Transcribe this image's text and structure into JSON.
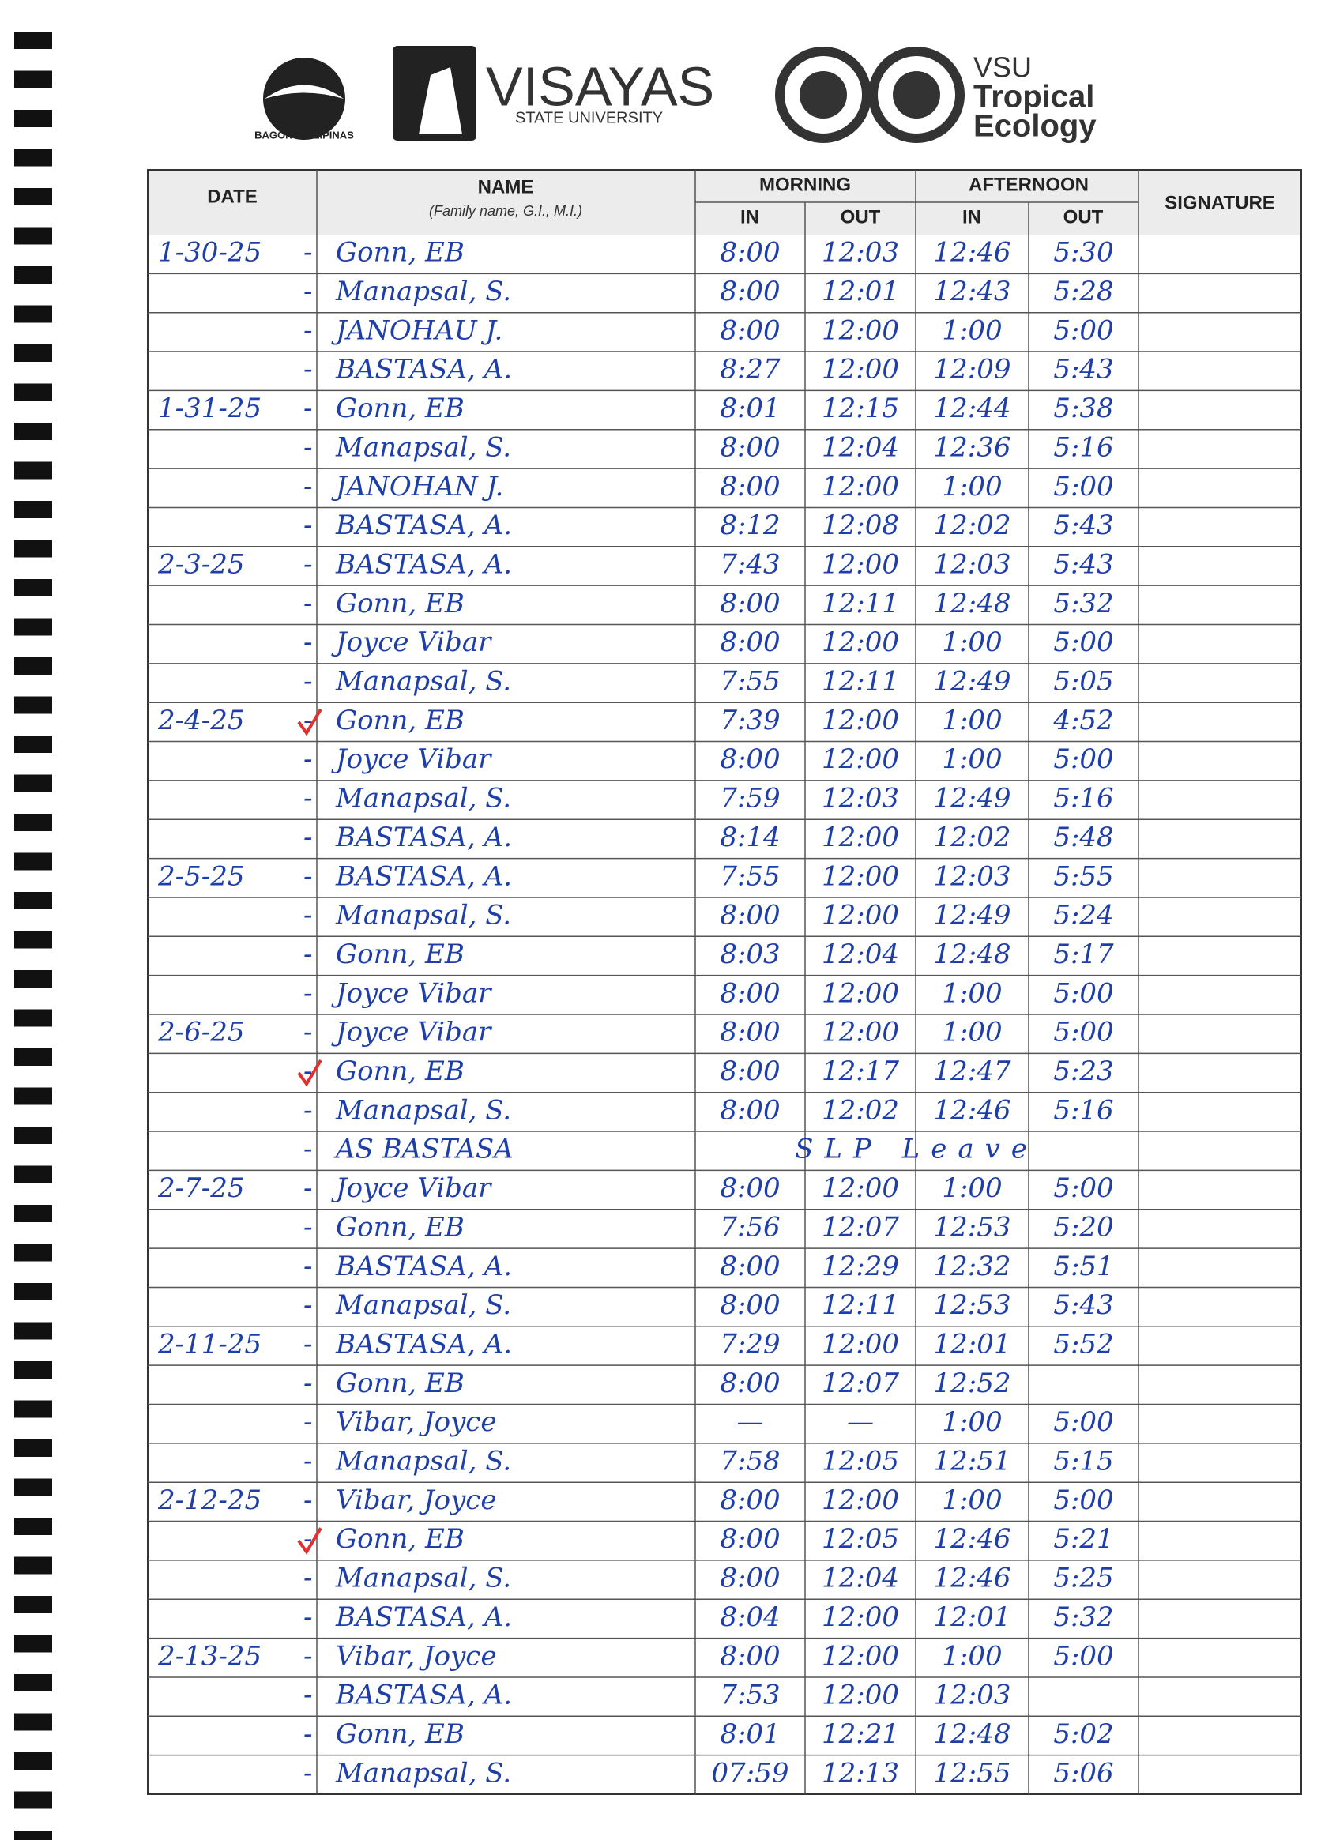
{
  "header": {
    "logo_left": "BAGONG PILIPINAS",
    "university": "VISAYAS",
    "university_sub": "STATE UNIVERSITY",
    "unit_abbr": "VSU",
    "unit_line1": "Tropical",
    "unit_line2": "Ecology"
  },
  "table": {
    "columns": {
      "date": "DATE",
      "name": "NAME",
      "name_hint": "(Family name, G.I., M.I.)",
      "morning": "MORNING",
      "afternoon": "AFTERNOON",
      "in": "IN",
      "out": "OUT",
      "signature": "SIGNATURE"
    },
    "rows": [
      {
        "date": "1-30-25",
        "name": "Gonn, EB",
        "times": [
          "8:00",
          "12:03",
          "12:46",
          "5:30"
        ]
      },
      {
        "name": "Manapsal, S.",
        "times": [
          "8:00",
          "12:01",
          "12:43",
          "5:28"
        ]
      },
      {
        "name": "JANOHAU J.",
        "times": [
          "8:00",
          "12:00",
          "1:00",
          "5:00"
        ]
      },
      {
        "name": "BASTASA, A.",
        "times": [
          "8:27",
          "12:00",
          "12:09",
          "5:43"
        ]
      },
      {
        "date": "1-31-25",
        "name": "Gonn, EB",
        "times": [
          "8:01",
          "12:15",
          "12:44",
          "5:38"
        ]
      },
      {
        "name": "Manapsal, S.",
        "times": [
          "8:00",
          "12:04",
          "12:36",
          "5:16"
        ]
      },
      {
        "name": "JANOHAN J.",
        "times": [
          "8:00",
          "12:00",
          "1:00",
          "5:00"
        ]
      },
      {
        "name": "BASTASA, A.",
        "times": [
          "8:12",
          "12:08",
          "12:02",
          "5:43"
        ]
      },
      {
        "date": "2-3-25",
        "name": "BASTASA, A.",
        "times": [
          "7:43",
          "12:00",
          "12:03",
          "5:43"
        ]
      },
      {
        "name": "Gonn, EB",
        "times": [
          "8:00",
          "12:11",
          "12:48",
          "5:32"
        ]
      },
      {
        "name": "Joyce Vibar",
        "times": [
          "8:00",
          "12:00",
          "1:00",
          "5:00"
        ]
      },
      {
        "name": "Manapsal, S.",
        "times": [
          "7:55",
          "12:11",
          "12:49",
          "5:05"
        ]
      },
      {
        "date": "2-4-25",
        "name": "Gonn, EB",
        "times": [
          "7:39",
          "12:00",
          "1:00",
          "4:52"
        ]
      },
      {
        "name": "Joyce Vibar",
        "times": [
          "8:00",
          "12:00",
          "1:00",
          "5:00"
        ]
      },
      {
        "name": "Manapsal, S.",
        "times": [
          "7:59",
          "12:03",
          "12:49",
          "5:16"
        ]
      },
      {
        "name": "BASTASA, A.",
        "times": [
          "8:14",
          "12:00",
          "12:02",
          "5:48"
        ]
      },
      {
        "date": "2-5-25",
        "name": "BASTASA, A.",
        "times": [
          "7:55",
          "12:00",
          "12:03",
          "5:55"
        ]
      },
      {
        "name": "Manapsal, S.",
        "times": [
          "8:00",
          "12:00",
          "12:49",
          "5:24"
        ]
      },
      {
        "name": "Gonn, EB",
        "times": [
          "8:03",
          "12:04",
          "12:48",
          "5:17"
        ]
      },
      {
        "name": "Joyce Vibar",
        "times": [
          "8:00",
          "12:00",
          "1:00",
          "5:00"
        ]
      },
      {
        "date": "2-6-25",
        "name": "Joyce Vibar",
        "times": [
          "8:00",
          "12:00",
          "1:00",
          "5:00"
        ]
      },
      {
        "name": "Gonn, EB",
        "times": [
          "8:00",
          "12:17",
          "12:47",
          "5:23"
        ]
      },
      {
        "name": "Manapsal, S.",
        "times": [
          "8:00",
          "12:02",
          "12:46",
          "5:16"
        ]
      },
      {
        "name": "AS BASTASA",
        "remark": "SLP Leave"
      },
      {
        "date": "2-7-25",
        "name": "Joyce Vibar",
        "times": [
          "8:00",
          "12:00",
          "1:00",
          "5:00"
        ]
      },
      {
        "name": "Gonn, EB",
        "times": [
          "7:56",
          "12:07",
          "12:53",
          "5:20"
        ]
      },
      {
        "name": "BASTASA, A.",
        "times": [
          "8:00",
          "12:29",
          "12:32",
          "5:51"
        ]
      },
      {
        "name": "Manapsal, S.",
        "times": [
          "8:00",
          "12:11",
          "12:53",
          "5:43"
        ]
      },
      {
        "date": "2-11-25",
        "name": "BASTASA, A.",
        "times": [
          "7:29",
          "12:00",
          "12:01",
          "5:52"
        ]
      },
      {
        "name": "Gonn, EB",
        "times": [
          "8:00",
          "12:07",
          "12:52",
          null
        ]
      },
      {
        "name": "Vibar, Joyce",
        "times": [
          "—",
          "—",
          "1:00",
          "5:00"
        ]
      },
      {
        "name": "Manapsal, S.",
        "times": [
          "7:58",
          "12:05",
          "12:51",
          "5:15"
        ]
      },
      {
        "date": "2-12-25",
        "name": "Vibar, Joyce",
        "times": [
          "8:00",
          "12:00",
          "1:00",
          "5:00"
        ]
      },
      {
        "name": "Gonn, EB",
        "times": [
          "8:00",
          "12:05",
          "12:46",
          "5:21"
        ]
      },
      {
        "name": "Manapsal, S.",
        "times": [
          "8:00",
          "12:04",
          "12:46",
          "5:25"
        ]
      },
      {
        "name": "BASTASA, A.",
        "times": [
          "8:04",
          "12:00",
          "12:01",
          "5:32"
        ]
      },
      {
        "date": "2-13-25",
        "name": "Vibar, Joyce",
        "times": [
          "8:00",
          "12:00",
          "1:00",
          "5:00"
        ]
      },
      {
        "name": "BASTASA, A.",
        "times": [
          "7:53",
          "12:00",
          "12:03",
          null
        ]
      },
      {
        "name": "Gonn, EB",
        "times": [
          "8:01",
          "12:21",
          "12:48",
          "5:02"
        ]
      },
      {
        "name": "Manapsal, S.",
        "times": [
          "07:59",
          "12:13",
          "12:55",
          "5:06"
        ]
      }
    ]
  }
}
